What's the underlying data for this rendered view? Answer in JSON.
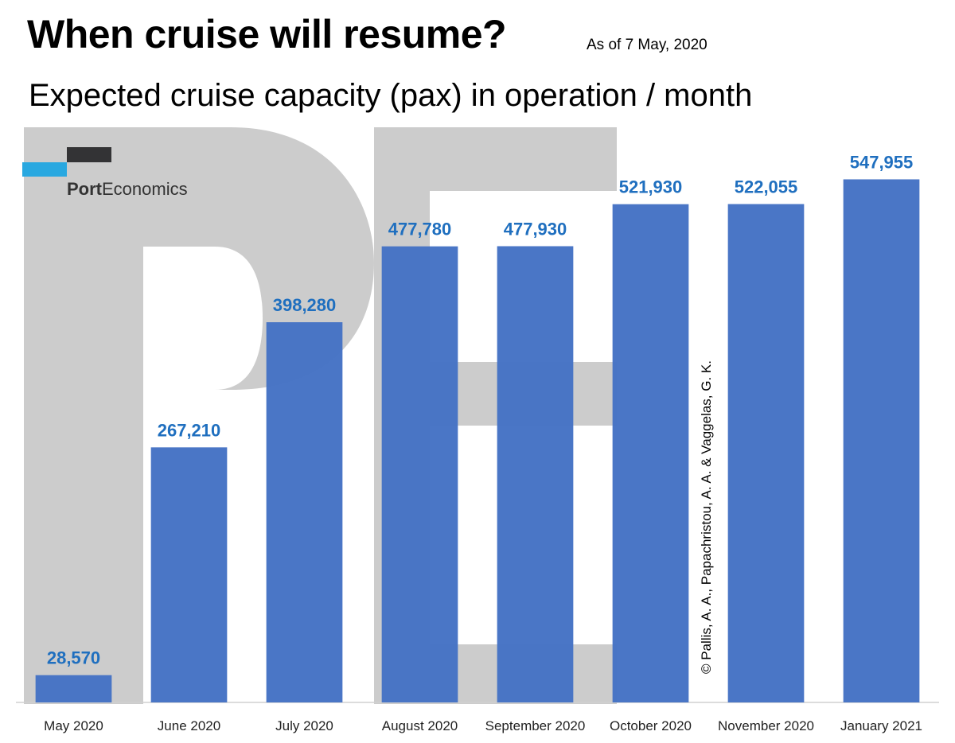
{
  "header": {
    "title": "When cruise will resume?",
    "as_of": "As of 7 May, 2020",
    "subtitle": "Expected cruise capacity (pax) in operation / month"
  },
  "logo": {
    "bold": "Port",
    "regular": "Economics",
    "watermark_letters": "PE"
  },
  "copyright": "© Pallis, A. A., Papachristou, A. A. & Vaggelas, G. K.",
  "colors": {
    "bar": "#4472c4",
    "label": "#1f6fbf",
    "watermark": "#c8c8c8",
    "logo_dark": "#333335",
    "logo_blue": "#29a8e0"
  },
  "chart_data": {
    "type": "bar",
    "categories": [
      "May 2020",
      "June 2020",
      "July 2020",
      "August 2020",
      "September 2020",
      "October 2020",
      "November 2020",
      "January 2021"
    ],
    "values": [
      28570,
      267210,
      398280,
      477780,
      477930,
      521930,
      522055,
      547955
    ],
    "value_labels": [
      "28,570",
      "267,210",
      "398,280",
      "477,780",
      "477,930",
      "521,930",
      "522,055",
      "547,955"
    ],
    "title": "Expected cruise capacity (pax) in operation / month",
    "xlabel": "",
    "ylabel": "",
    "ylim": [
      0,
      600000
    ],
    "grid": false,
    "legend": "none"
  }
}
